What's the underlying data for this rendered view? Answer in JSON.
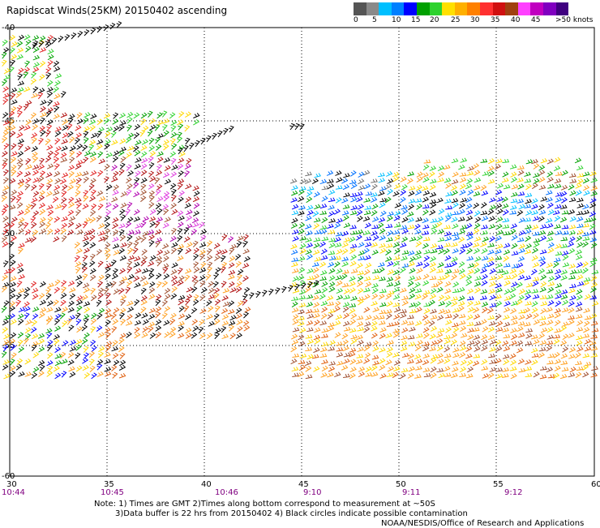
{
  "title": "Rapidscat Winds(25KM) 20150402 ascending",
  "legend": {
    "colors": [
      "#555555",
      "#8a8a8a",
      "#00bfff",
      "#0080ff",
      "#0000ff",
      "#00a000",
      "#2ed22e",
      "#ffe000",
      "#ffb000",
      "#ff8000",
      "#ff3030",
      "#d01010",
      "#a04010",
      "#ff40ff",
      "#c000c0",
      "#8000c0",
      "#400080"
    ],
    "labels": [
      "0",
      "5",
      "10",
      "15",
      "20",
      "25",
      "30",
      "35",
      "40",
      "45",
      ">50 knots"
    ]
  },
  "axes": {
    "lat_labels": [
      "-40",
      "-45",
      "-50",
      "-55",
      "-60"
    ],
    "lon_labels": [
      "30",
      "35",
      "40",
      "45",
      "50",
      "55",
      "60"
    ],
    "time_labels": [
      "10:44",
      "10:45",
      "10:46",
      "9:10",
      "9:11",
      "9:12"
    ]
  },
  "notes": {
    "line1": "Note: 1) Times are GMT 2)Times along bottom correspond to measurement at ~50S",
    "line2": "3)Data buffer is 22 hrs from 20150402 4) Black circles indicate possible contamination"
  },
  "credit": "NOAA/NESDIS/Office of Research and Applications"
}
